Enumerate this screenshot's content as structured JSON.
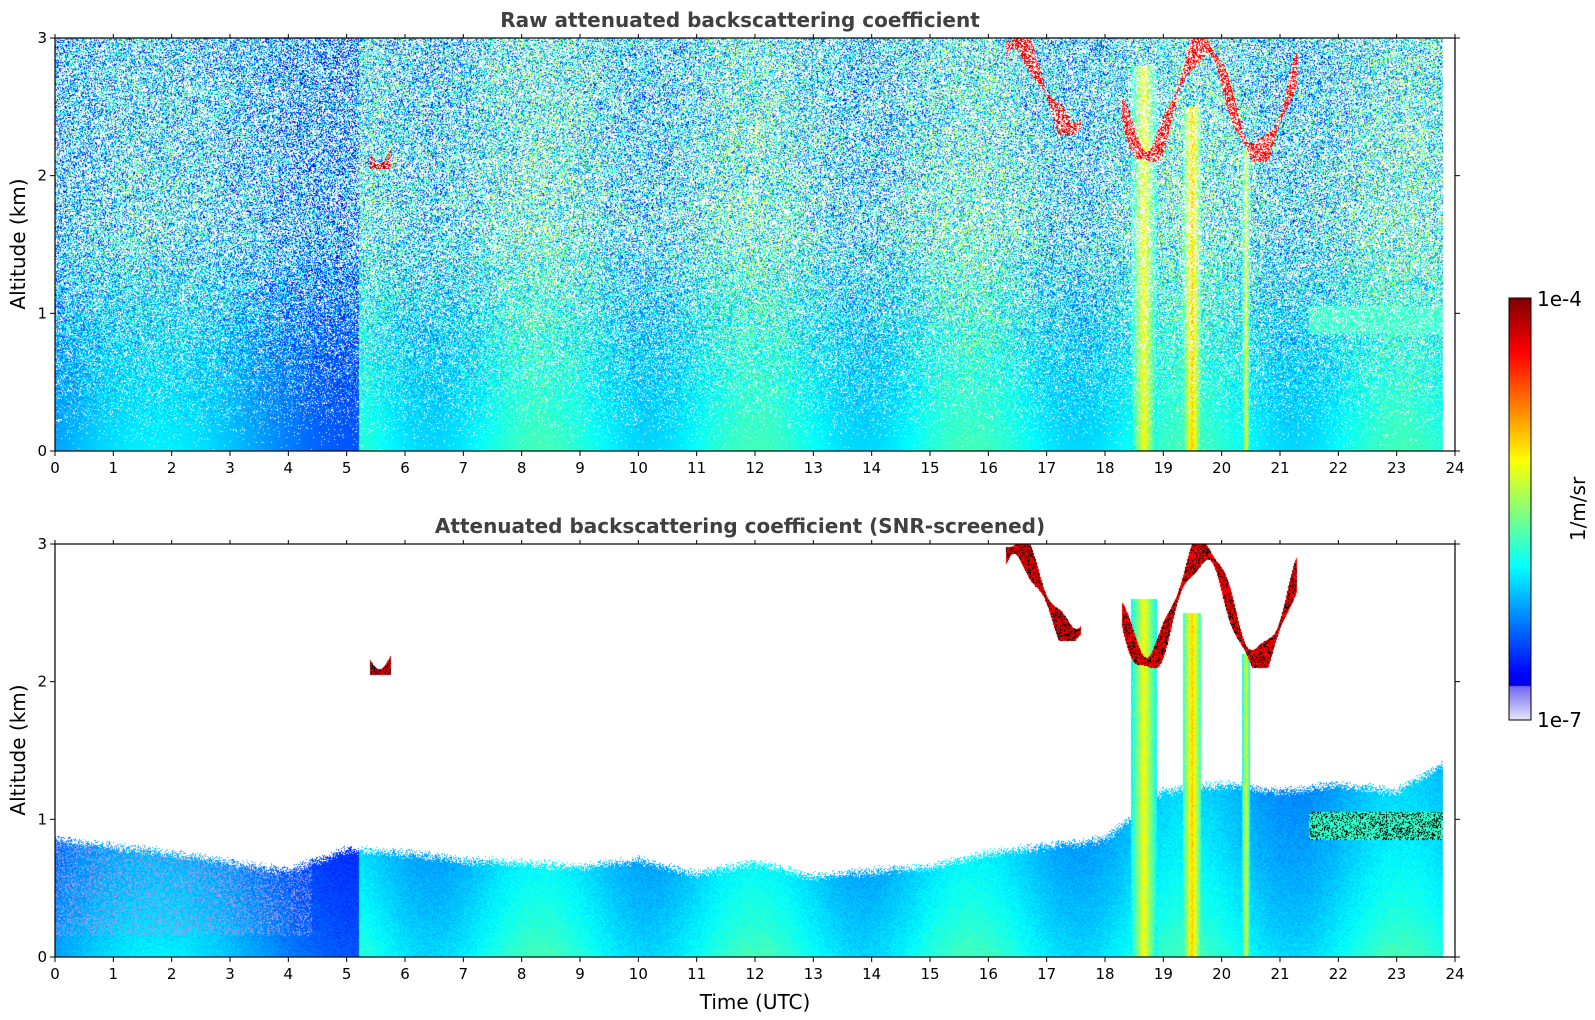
{
  "chart_data": [
    {
      "type": "heatmap",
      "title": "Raw attenuated backscattering coefficient",
      "xlabel": "",
      "ylabel": "Altitude (km)",
      "xlim": [
        0,
        24
      ],
      "ylim": [
        0,
        3
      ],
      "x_ticks": [
        0,
        1,
        2,
        3,
        4,
        5,
        6,
        7,
        8,
        9,
        10,
        11,
        12,
        13,
        14,
        15,
        16,
        17,
        18,
        19,
        20,
        21,
        22,
        23,
        24
      ],
      "y_ticks": [
        0,
        1,
        2,
        3
      ],
      "variant": "raw",
      "features": [
        {
          "kind": "cloud",
          "t": [
            5.4,
            5.75
          ],
          "z": [
            2.05,
            2.25
          ],
          "level": 0.92
        },
        {
          "kind": "cloud",
          "t": [
            16.3,
            17.6
          ],
          "z": [
            2.3,
            3.0
          ],
          "level": 0.9
        },
        {
          "kind": "cloud",
          "t": [
            18.3,
            21.3
          ],
          "z": [
            2.1,
            3.0
          ],
          "level": 0.88
        },
        {
          "kind": "aerosol",
          "t": [
            21.5,
            23.8
          ],
          "z": [
            0.85,
            1.05
          ],
          "level": 0.45
        },
        {
          "kind": "fallstreak",
          "t": [
            18.45,
            18.9
          ],
          "z": [
            0.0,
            2.8
          ],
          "level": 0.62
        },
        {
          "kind": "fallstreak",
          "t": [
            19.35,
            19.65
          ],
          "z": [
            0.0,
            2.5
          ],
          "level": 0.68
        },
        {
          "kind": "fallstreak",
          "t": [
            20.35,
            20.5
          ],
          "z": [
            0.0,
            2.2
          ],
          "level": 0.6
        }
      ]
    },
    {
      "type": "heatmap",
      "title": "Attenuated backscattering coefficient (SNR-screened)",
      "xlabel": "Time (UTC)",
      "ylabel": "Altitude (km)",
      "xlim": [
        0,
        24
      ],
      "ylim": [
        0,
        3
      ],
      "x_ticks": [
        0,
        1,
        2,
        3,
        4,
        5,
        6,
        7,
        8,
        9,
        10,
        11,
        12,
        13,
        14,
        15,
        16,
        17,
        18,
        19,
        20,
        21,
        22,
        23,
        24
      ],
      "y_ticks": [
        0,
        1,
        2,
        3
      ],
      "variant": "screened",
      "boundary_layer_top_km": [
        [
          0,
          0.85
        ],
        [
          2,
          0.75
        ],
        [
          4,
          0.62
        ],
        [
          5,
          0.78
        ],
        [
          6,
          0.75
        ],
        [
          7,
          0.7
        ],
        [
          8,
          0.68
        ],
        [
          9,
          0.65
        ],
        [
          10,
          0.7
        ],
        [
          11,
          0.6
        ],
        [
          12,
          0.68
        ],
        [
          13,
          0.58
        ],
        [
          14,
          0.62
        ],
        [
          15,
          0.65
        ],
        [
          16,
          0.75
        ],
        [
          17,
          0.8
        ],
        [
          18,
          0.85
        ],
        [
          19,
          1.2
        ],
        [
          20,
          1.25
        ],
        [
          21,
          1.2
        ],
        [
          22,
          1.25
        ],
        [
          23,
          1.2
        ],
        [
          23.8,
          1.4
        ]
      ]
    }
  ],
  "colorbar": {
    "label": "1/m/sr",
    "max_label": "1e-4",
    "min_label": "1e-7",
    "colormap": "jet",
    "scale": "log"
  },
  "colors": {
    "title_color": "#404040",
    "cloud_core": "#8b0000",
    "cloud_edge": "#000000"
  }
}
